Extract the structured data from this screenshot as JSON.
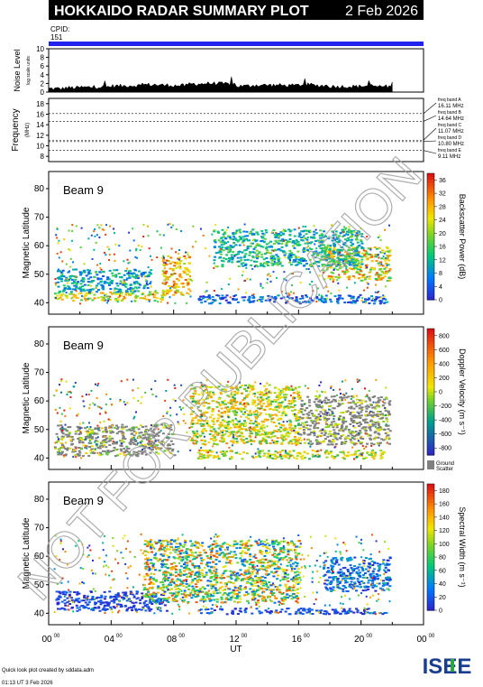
{
  "header": {
    "title": "HOKKAIDO RADAR SUMMARY PLOT",
    "date": "2 Feb 2026"
  },
  "cpid": {
    "label": "CPID:",
    "value": "151"
  },
  "colors": {
    "header_bg": "#000000",
    "cpid_bar": "#2222ee",
    "ground_scatter": "#808080",
    "watermark": "#b0b0b0"
  },
  "footer": {
    "credit": "Quick look plot created by sddata.adm",
    "created": "01:13 UT  3 Feb 2026",
    "logo_text": "ISEE"
  },
  "watermark": "NOT FOR PUBLICATION",
  "chart_data": [
    {
      "type": "area",
      "name": "noise",
      "ylabel": "Noise Level",
      "ylabel_sub": "log scale units",
      "ylim": [
        0,
        10
      ],
      "yticks": [
        "0",
        "2",
        "4",
        "6",
        "8",
        "10"
      ],
      "x_hours": [
        0,
        1,
        2,
        3,
        4,
        5,
        6,
        7,
        8,
        9,
        10,
        11,
        12,
        13,
        14,
        15,
        16,
        17,
        18,
        19,
        20,
        21,
        22
      ],
      "values": [
        0.8,
        1.0,
        1.1,
        1.2,
        1.4,
        1.5,
        1.7,
        1.6,
        1.5,
        1.9,
        2.0,
        1.9,
        1.4,
        1.6,
        1.6,
        1.5,
        1.7,
        1.5,
        1.3,
        1.3,
        1.4,
        1.3,
        2.0
      ]
    },
    {
      "type": "line",
      "name": "frequency",
      "ylabel": "Frequency",
      "yunit": "(MHz)",
      "ylim": [
        7,
        19
      ],
      "yticks": [
        "8",
        "10",
        "12",
        "14",
        "16",
        "18"
      ],
      "bands": [
        {
          "label": "freq band A",
          "value": "16.11 MHz",
          "mhz": 16.11
        },
        {
          "label": "freq band B",
          "value": "14.64 MHz",
          "mhz": 14.64
        },
        {
          "label": "freq band C",
          "value": "11.07 MHz",
          "mhz": 11.07
        },
        {
          "label": "freq band D",
          "value": "10.80 MHz",
          "mhz": 10.8
        },
        {
          "label": "freq band E",
          "value": "9.11 MHz",
          "mhz": 9.11
        }
      ]
    },
    {
      "type": "heatmap",
      "name": "power",
      "beam": "Beam  9",
      "ylabel": "Magnetic Latitude",
      "ylim": [
        36,
        86
      ],
      "yticks": [
        "40",
        "50",
        "60",
        "70",
        "80"
      ],
      "colorbar_label": "Backscatter Power (dB)",
      "colorbar_ticks": [
        "0",
        "4",
        "8",
        "12",
        "16",
        "20",
        "24",
        "28",
        "32",
        "36"
      ],
      "colorbar_range": [
        0,
        38
      ],
      "features": [
        {
          "h0": 0.3,
          "h1": 7.5,
          "lat0": 41,
          "lat1": 44,
          "min": 16,
          "max": 32
        },
        {
          "h0": 7.2,
          "h1": 9.0,
          "lat0": 43,
          "lat1": 57,
          "min": 20,
          "max": 36
        },
        {
          "h0": 0.5,
          "h1": 6.5,
          "lat0": 44,
          "lat1": 52,
          "min": 4,
          "max": 16
        },
        {
          "h0": 17.5,
          "h1": 21.8,
          "lat0": 48,
          "lat1": 60,
          "min": 14,
          "max": 34
        },
        {
          "h0": 9.5,
          "h1": 21.5,
          "lat0": 40,
          "lat1": 43,
          "min": 0,
          "max": 10
        },
        {
          "h0": 10.5,
          "h1": 20.0,
          "lat0": 53,
          "lat1": 66,
          "min": 6,
          "max": 20
        }
      ]
    },
    {
      "type": "heatmap",
      "name": "velocity",
      "beam": "Beam  9",
      "ylabel": "Magnetic Latitude",
      "ylim": [
        36,
        86
      ],
      "yticks": [
        "40",
        "50",
        "60",
        "70",
        "80"
      ],
      "colorbar_label": "Doppler Velocity (m s⁻¹)",
      "colorbar_ticks": [
        "800",
        "600",
        "400",
        "200",
        "0",
        "-200",
        "-400",
        "-600",
        "-800"
      ],
      "colorbar_range": [
        -900,
        900
      ],
      "ground_scatter_label": "Ground Scatter",
      "features": [
        {
          "h0": 0.3,
          "h1": 8.0,
          "lat0": 41,
          "lat1": 52,
          "min": -200,
          "max": 200,
          "gs": true
        },
        {
          "h0": 9.5,
          "h1": 21.5,
          "lat0": 40,
          "lat1": 43,
          "min": -300,
          "max": 300,
          "gs": false
        },
        {
          "h0": 16.0,
          "h1": 21.8,
          "lat0": 45,
          "lat1": 62,
          "min": -100,
          "max": 100,
          "gs": true
        },
        {
          "h0": 9.0,
          "h1": 16.0,
          "lat0": 45,
          "lat1": 66,
          "min": -500,
          "max": 300,
          "gs": false
        }
      ]
    },
    {
      "type": "heatmap",
      "name": "width",
      "beam": "Beam  9",
      "ylabel": "Magnetic Latitude",
      "ylim": [
        36,
        86
      ],
      "yticks": [
        "40",
        "50",
        "60",
        "70",
        "80"
      ],
      "colorbar_label": "Spectral Width (m s⁻¹)",
      "colorbar_ticks": [
        "0",
        "20",
        "40",
        "60",
        "80",
        "100",
        "120",
        "140",
        "160",
        "180"
      ],
      "colorbar_range": [
        0,
        190
      ],
      "features": [
        {
          "h0": 0.3,
          "h1": 7.5,
          "lat0": 41,
          "lat1": 48,
          "min": 0,
          "max": 30
        },
        {
          "h0": 9.5,
          "h1": 21.5,
          "lat0": 40,
          "lat1": 42,
          "min": 0,
          "max": 30
        },
        {
          "h0": 17.5,
          "h1": 21.8,
          "lat0": 48,
          "lat1": 60,
          "min": 0,
          "max": 60
        },
        {
          "h0": 6.0,
          "h1": 16.0,
          "lat0": 44,
          "lat1": 66,
          "min": 20,
          "max": 180
        }
      ]
    }
  ],
  "xaxis": {
    "label": "UT",
    "xlim_hours": [
      0,
      24
    ],
    "ticks": [
      "00",
      "04",
      "08",
      "12",
      "16",
      "20",
      "00"
    ],
    "tick_sup": "00"
  }
}
